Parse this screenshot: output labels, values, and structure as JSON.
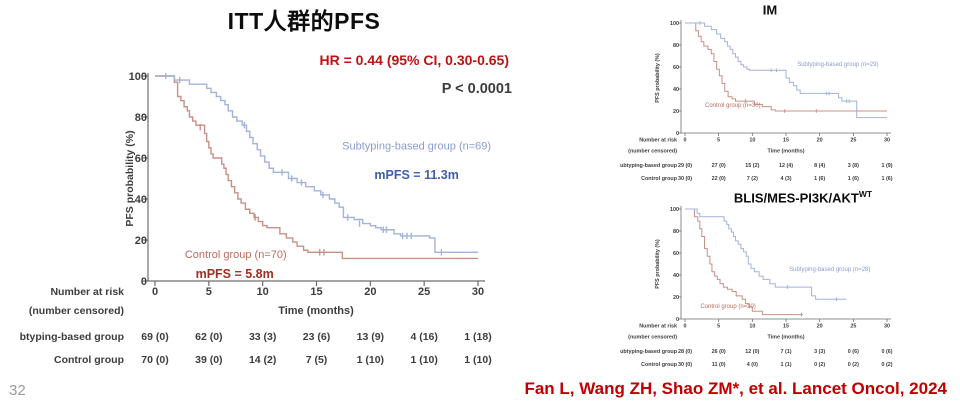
{
  "page": {
    "slide_number": "32",
    "citation": "Fan L, Wang ZH, Shao ZM*, et al. Lancet Oncol, 2024"
  },
  "colors": {
    "accent_red": "#c00000",
    "dark_text": "#3d3d3d",
    "axis": "#6e6e6e",
    "blue_curve": "#a2b4da",
    "blue_label": "#8b9dd0",
    "blue_strong": "#3d5ead",
    "red_curve": "#c89086",
    "red_label": "#be6b5e",
    "red_strong": "#9e2f24"
  },
  "chart_data": [
    {
      "type": "line",
      "subtype": "kaplan-meier",
      "title": "ITT人群的PFS",
      "title_sup": "",
      "hr_text": "HR = 0.44 (95% CI, 0.30-0.65)",
      "p_text": "P < 0.0001",
      "xlabel": "Time (months)",
      "ylabel": "PFS probability (%)",
      "xlim": [
        0,
        30
      ],
      "ylim": [
        0,
        100
      ],
      "xticks": [
        0,
        5,
        10,
        15,
        20,
        25,
        30
      ],
      "yticks": [
        0,
        20,
        40,
        60,
        80,
        100
      ],
      "grid": false,
      "series": [
        {
          "name": "Subtyping-based group (n=69)",
          "color": "#a2b4da",
          "label_color": "#8b9dd0",
          "label_pos": {
            "t": 24.3,
            "pct": 66
          },
          "annotation": "mPFS = 11.3m",
          "annotation_color": "#3d5ead",
          "annotation_pos": {
            "t": 24.3,
            "pct": 52
          },
          "points": [
            [
              0,
              100
            ],
            [
              1.8,
              98
            ],
            [
              3.2,
              96
            ],
            [
              4.8,
              94
            ],
            [
              5.2,
              92
            ],
            [
              5.7,
              90
            ],
            [
              6.1,
              88
            ],
            [
              6.5,
              86
            ],
            [
              6.8,
              83
            ],
            [
              7.2,
              80
            ],
            [
              7.6,
              78
            ],
            [
              8.1,
              76
            ],
            [
              8.5,
              73
            ],
            [
              8.8,
              70
            ],
            [
              9.1,
              67
            ],
            [
              9.5,
              64
            ],
            [
              9.8,
              61
            ],
            [
              10.2,
              58
            ],
            [
              10.6,
              55
            ],
            [
              11,
              53
            ],
            [
              12.4,
              50
            ],
            [
              13.2,
              48
            ],
            [
              14,
              46
            ],
            [
              14.8,
              44
            ],
            [
              15.4,
              42
            ],
            [
              16.2,
              40
            ],
            [
              16.7,
              38
            ],
            [
              17.1,
              36
            ],
            [
              17.5,
              31
            ],
            [
              18.5,
              30
            ],
            [
              19.3,
              28
            ],
            [
              20,
              27
            ],
            [
              20.5,
              26
            ],
            [
              21,
              25
            ],
            [
              22.2,
              23
            ],
            [
              22.8,
              22
            ],
            [
              25.5,
              21
            ],
            [
              26,
              14
            ],
            [
              30,
              14
            ]
          ],
          "censors": [
            [
              1,
              100
            ],
            [
              2.3,
              98
            ],
            [
              8.3,
              76
            ],
            [
              11.8,
              53
            ],
            [
              12.7,
              50
            ],
            [
              13.6,
              48
            ],
            [
              15.6,
              42
            ],
            [
              17.9,
              31
            ],
            [
              19,
              28
            ],
            [
              21.2,
              25
            ],
            [
              21.5,
              25
            ],
            [
              23,
              22
            ],
            [
              23.4,
              22
            ],
            [
              23.8,
              22
            ],
            [
              26.6,
              14
            ]
          ]
        },
        {
          "name": "Control group (n=70)",
          "color": "#c89086",
          "label_color": "#be6b5e",
          "label_pos": {
            "t": 7.5,
            "pct": 13
          },
          "annotation": "mPFS = 5.8m",
          "annotation_color": "#9e2f24",
          "annotation_pos": {
            "t": 7.4,
            "pct": 3.5
          },
          "points": [
            [
              0,
              100
            ],
            [
              1.8,
              97
            ],
            [
              2.1,
              90
            ],
            [
              2.4,
              88
            ],
            [
              2.7,
              85
            ],
            [
              3,
              83
            ],
            [
              3.2,
              80
            ],
            [
              3.5,
              78
            ],
            [
              3.8,
              76
            ],
            [
              4.6,
              72
            ],
            [
              4.8,
              68
            ],
            [
              5,
              65
            ],
            [
              5.2,
              62
            ],
            [
              5.4,
              60
            ],
            [
              6.2,
              57
            ],
            [
              6.4,
              55
            ],
            [
              6.6,
              52
            ],
            [
              6.8,
              49
            ],
            [
              7.1,
              46
            ],
            [
              7.4,
              43
            ],
            [
              7.7,
              40
            ],
            [
              8,
              38
            ],
            [
              8.4,
              35
            ],
            [
              8.8,
              33
            ],
            [
              9.2,
              31
            ],
            [
              9.6,
              29
            ],
            [
              10,
              27
            ],
            [
              10.4,
              26
            ],
            [
              11.6,
              23
            ],
            [
              12.2,
              21
            ],
            [
              12.8,
              19
            ],
            [
              13.2,
              17
            ],
            [
              13.8,
              15
            ],
            [
              14.2,
              14
            ],
            [
              17.4,
              11
            ],
            [
              30,
              11
            ]
          ],
          "censors": [
            [
              4.2,
              75
            ],
            [
              9.3,
              31
            ],
            [
              15.3,
              14
            ],
            [
              15.7,
              14
            ]
          ]
        }
      ],
      "risk_table": {
        "header": [
          "Number at risk",
          "(number censored)"
        ],
        "rows": [
          {
            "label": "Subtyping-based group",
            "values": [
              "69 (0)",
              "62 (0)",
              "33 (3)",
              "23 (6)",
              "13 (9)",
              "4 (16)",
              "1 (18)"
            ]
          },
          {
            "label": "Control group",
            "values": [
              "70 (0)",
              "39 (0)",
              "14 (2)",
              "7 (5)",
              "1 (10)",
              "1 (10)",
              "1 (10)"
            ]
          }
        ]
      }
    },
    {
      "type": "line",
      "subtype": "kaplan-meier",
      "title": "IM",
      "title_sup": "",
      "xlabel": "Time (months)",
      "ylabel": "PFS probability (%)",
      "xlim": [
        0,
        30
      ],
      "ylim": [
        0,
        100
      ],
      "xticks": [
        0,
        5,
        10,
        15,
        20,
        25,
        30
      ],
      "yticks": [
        0,
        20,
        40,
        60,
        80,
        100
      ],
      "grid": false,
      "series": [
        {
          "name": "Subtyping-based group (n=29)",
          "color": "#a2b4da",
          "label_color": "#8b9dd0",
          "label_pos": {
            "t": 22.7,
            "pct": 63
          },
          "points": [
            [
              0,
              100
            ],
            [
              2.9,
              97
            ],
            [
              3.9,
              94
            ],
            [
              4.7,
              90
            ],
            [
              5.3,
              86
            ],
            [
              5.9,
              83
            ],
            [
              6.3,
              79
            ],
            [
              6.7,
              76
            ],
            [
              7.1,
              72
            ],
            [
              7.5,
              69
            ],
            [
              7.9,
              65
            ],
            [
              8.3,
              62
            ],
            [
              8.7,
              60
            ],
            [
              9.2,
              58
            ],
            [
              9.6,
              57
            ],
            [
              15,
              50
            ],
            [
              15.5,
              46
            ],
            [
              16.1,
              43
            ],
            [
              16.6,
              39
            ],
            [
              17.1,
              36
            ],
            [
              22.8,
              32
            ],
            [
              23.3,
              29
            ],
            [
              25.5,
              14
            ],
            [
              30,
              14
            ]
          ],
          "censors": [
            [
              2.2,
              100
            ],
            [
              12.8,
              57
            ],
            [
              13.6,
              57
            ],
            [
              21,
              36
            ],
            [
              21.4,
              36
            ],
            [
              24,
              29
            ],
            [
              24.4,
              29
            ]
          ]
        },
        {
          "name": "Control group (n=30)",
          "color": "#c89086",
          "label_color": "#be6b5e",
          "label_pos": {
            "t": 7.1,
            "pct": 25.5
          },
          "points": [
            [
              0,
              100
            ],
            [
              1.6,
              93
            ],
            [
              2,
              88
            ],
            [
              2.4,
              83
            ],
            [
              2.8,
              79
            ],
            [
              3.4,
              76
            ],
            [
              3.9,
              72
            ],
            [
              4.3,
              65
            ],
            [
              4.7,
              58
            ],
            [
              5.1,
              52
            ],
            [
              5.5,
              45
            ],
            [
              5.9,
              38
            ],
            [
              6.4,
              33
            ],
            [
              7,
              31
            ],
            [
              7.5,
              29
            ],
            [
              10.3,
              26
            ],
            [
              11.5,
              24
            ],
            [
              12.8,
              21
            ],
            [
              13.4,
              20
            ],
            [
              30,
              20
            ]
          ],
          "censors": [
            [
              9,
              29
            ],
            [
              14.8,
              20
            ],
            [
              19.5,
              20
            ]
          ]
        }
      ],
      "risk_table": {
        "header": [
          "Number at risk",
          "(number censored)"
        ],
        "rows": [
          {
            "label": "Subtyping-based group",
            "values": [
              "29 (0)",
              "27 (0)",
              "15 (2)",
              "12 (4)",
              "8 (4)",
              "3 (8)",
              "1 (9)"
            ]
          },
          {
            "label": "Control group",
            "values": [
              "30 (0)",
              "22 (0)",
              "7 (2)",
              "4 (3)",
              "1 (6)",
              "1 (6)",
              "1 (6)"
            ]
          }
        ]
      }
    },
    {
      "type": "line",
      "subtype": "kaplan-meier",
      "title": "BLIS/MES-PI3K/AKT",
      "title_sup": "WT",
      "xlabel": "Time (months)",
      "ylabel": "PFS probability (%)",
      "xlim": [
        0,
        30
      ],
      "ylim": [
        0,
        100
      ],
      "xticks": [
        0,
        5,
        10,
        15,
        20,
        25,
        30
      ],
      "yticks": [
        0,
        20,
        40,
        60,
        80,
        100
      ],
      "grid": false,
      "series": [
        {
          "name": "Subtyping-based group (n=28)",
          "color": "#a2b4da",
          "label_color": "#8b9dd0",
          "label_pos": {
            "t": 21.5,
            "pct": 45.5
          },
          "points": [
            [
              0,
              100
            ],
            [
              1.8,
              96
            ],
            [
              2.2,
              93
            ],
            [
              5.8,
              89
            ],
            [
              6.2,
              86
            ],
            [
              6.5,
              82
            ],
            [
              6.9,
              79
            ],
            [
              7.2,
              75
            ],
            [
              7.5,
              71
            ],
            [
              7.9,
              68
            ],
            [
              8.3,
              64
            ],
            [
              8.7,
              61
            ],
            [
              9.1,
              57
            ],
            [
              9.4,
              50
            ],
            [
              9.8,
              46
            ],
            [
              10.3,
              43
            ],
            [
              11,
              39
            ],
            [
              11.6,
              36
            ],
            [
              12.6,
              32
            ],
            [
              13.4,
              29
            ],
            [
              18.8,
              21
            ],
            [
              19.4,
              18
            ],
            [
              24,
              18
            ]
          ],
          "censors": [
            [
              15.2,
              29
            ],
            [
              22.5,
              18
            ]
          ]
        },
        {
          "name": "Control group (n=30)",
          "color": "#c89086",
          "label_color": "#be6b5e",
          "label_pos": {
            "t": 6.4,
            "pct": 12
          },
          "points": [
            [
              0,
              100
            ],
            [
              1.4,
              93
            ],
            [
              1.9,
              89
            ],
            [
              2.2,
              82
            ],
            [
              2.5,
              75
            ],
            [
              2.9,
              64
            ],
            [
              3.3,
              57
            ],
            [
              3.7,
              50
            ],
            [
              4,
              43
            ],
            [
              4.4,
              39
            ],
            [
              4.8,
              36
            ],
            [
              5.2,
              32
            ],
            [
              5.7,
              29
            ],
            [
              6.3,
              27
            ],
            [
              7,
              25
            ],
            [
              7.6,
              21
            ],
            [
              8.5,
              18
            ],
            [
              9,
              14
            ],
            [
              9.5,
              11
            ],
            [
              10,
              7
            ],
            [
              11.5,
              4
            ],
            [
              17.5,
              4
            ]
          ],
          "censors": [
            [
              17.3,
              4
            ]
          ]
        }
      ],
      "risk_table": {
        "header": [
          "Number at risk",
          "(number censored)"
        ],
        "rows": [
          {
            "label": "Subtyping-based group",
            "values": [
              "28 (0)",
              "26 (0)",
              "12 (0)",
              "7 (1)",
              "3 (3)",
              "0 (6)",
              "0 (6)"
            ]
          },
          {
            "label": "Control group",
            "values": [
              "30 (0)",
              "11 (0)",
              "4 (0)",
              "1 (1)",
              "0 (2)",
              "0 (2)",
              "0 (2)"
            ]
          }
        ]
      }
    }
  ]
}
